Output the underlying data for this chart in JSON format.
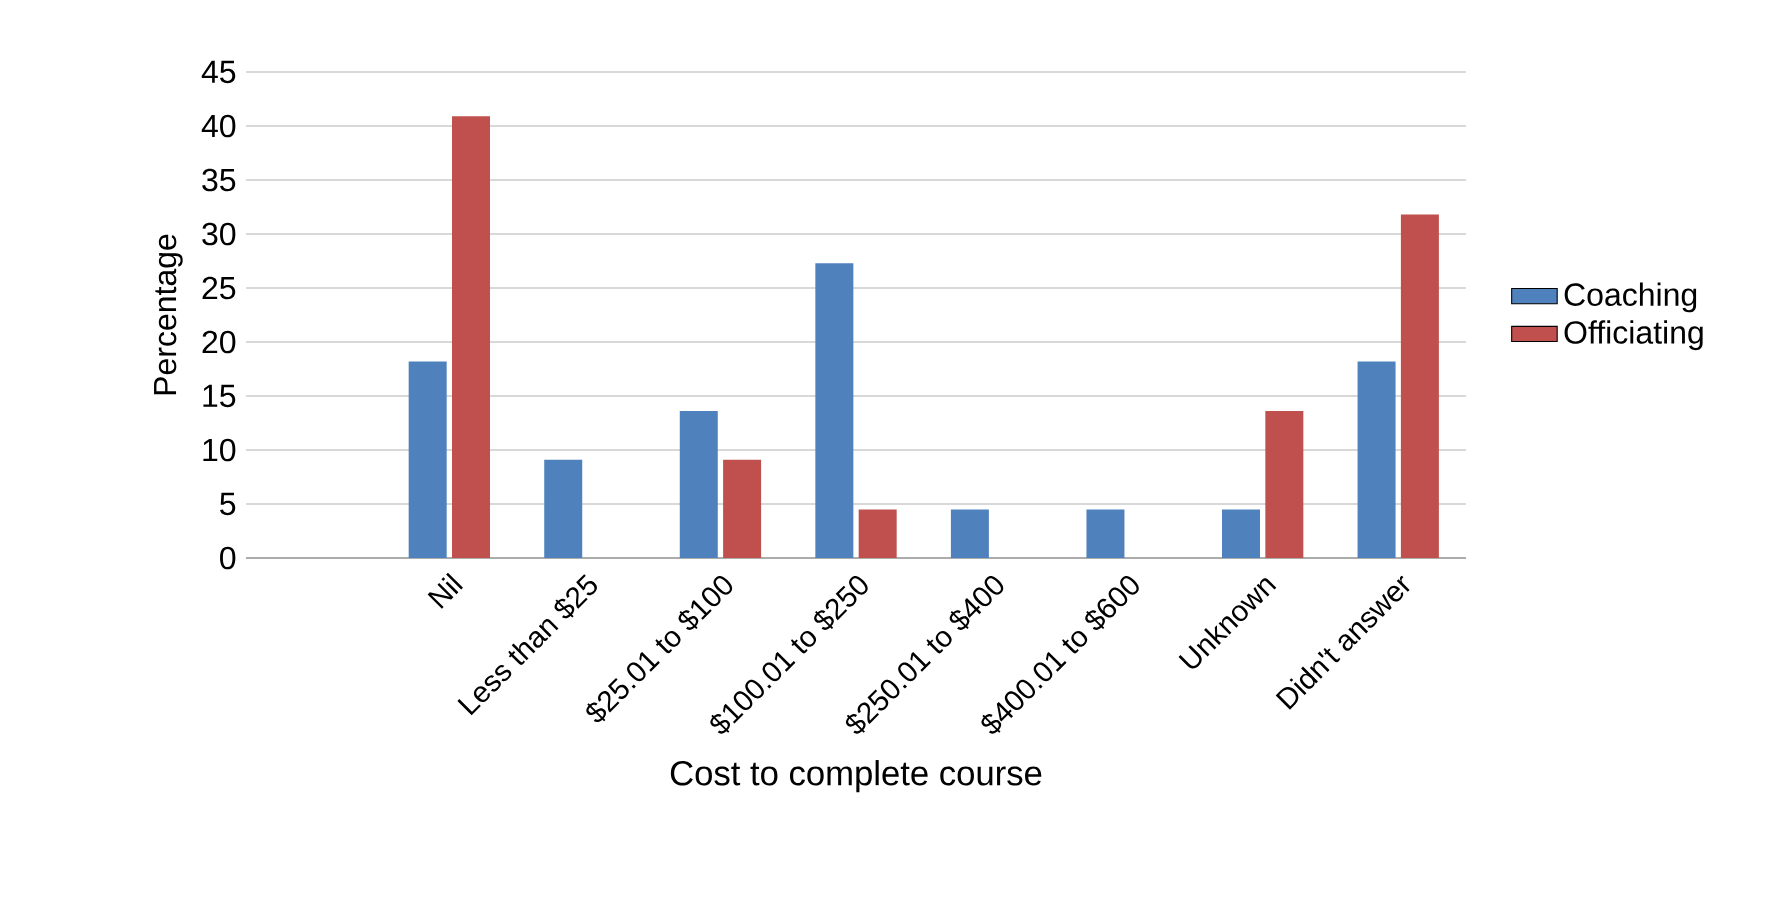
{
  "chart_data": {
    "type": "bar",
    "xlabel": "Cost to complete course",
    "ylabel": "Percentage",
    "categories": [
      null,
      "Nil",
      "Less than $25",
      "$25.01 to $100",
      "$100.01 to $250",
      "$250.01 to $400",
      "$400.01 to $600",
      "Unknown",
      "Didn't answer"
    ],
    "series": [
      {
        "name": "Coaching",
        "color": "#4f81bd",
        "values": [
          null,
          18.2,
          9.1,
          13.6,
          27.3,
          4.5,
          4.5,
          4.5,
          18.2
        ]
      },
      {
        "name": "Officiating",
        "color": "#c0504d",
        "values": [
          null,
          40.9,
          null,
          9.1,
          4.5,
          null,
          null,
          13.6,
          31.8
        ]
      }
    ],
    "ylim": [
      0,
      45
    ],
    "yticks": [
      0,
      5,
      10,
      15,
      20,
      25,
      30,
      35,
      40,
      45
    ],
    "grid": "y",
    "legend": "right"
  }
}
